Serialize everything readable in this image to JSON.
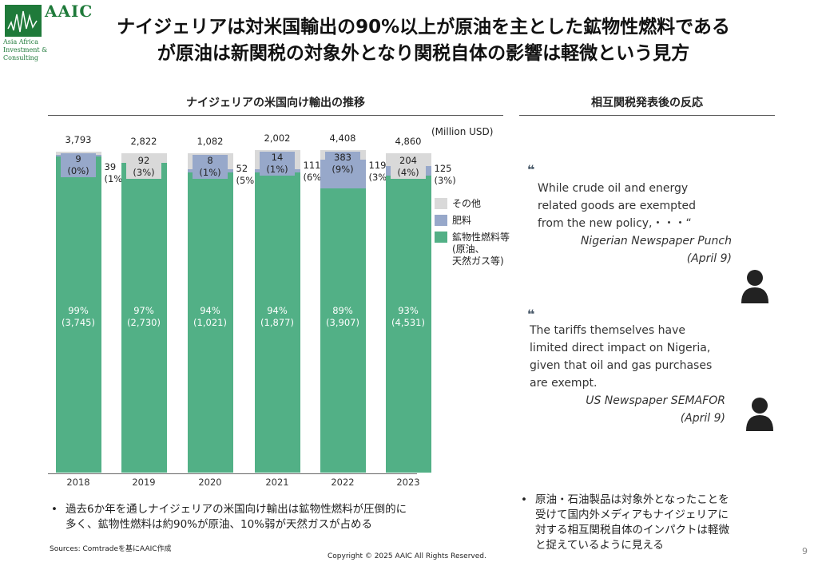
{
  "logo": {
    "name": "AAIC",
    "sub": "Asia Africa Investment & Consulting"
  },
  "title": [
    "ナイジェリアは対米国輸出の90%以上が原油を主とした鉱物性燃料である",
    "が原油は新関税の対象外となり関税自体の影響は軽微という見方"
  ],
  "left_section_title": "ナイジェリアの米国向け輸出の推移",
  "right_section_title": "相互関税発表後の反応",
  "chart_data": {
    "type": "bar",
    "stacked": true,
    "unit": "(Million USD)",
    "categories": [
      "2018",
      "2019",
      "2020",
      "2021",
      "2022",
      "2023"
    ],
    "totals": [
      "3,793",
      "2,822",
      "1,082",
      "2,002",
      "4,408",
      "4,860"
    ],
    "series": [
      {
        "name": "鉱物性燃料等",
        "note": [
          "(原油、",
          "天然ガス等)"
        ],
        "color": "#52b086",
        "values": [
          3745,
          2730,
          1021,
          1877,
          3907,
          4531
        ],
        "labels": [
          "3,745",
          "2,730",
          "1,021",
          "1,877",
          "3,907",
          "4,531"
        ],
        "pct": [
          "99%",
          "97%",
          "94%",
          "94%",
          "89%",
          "93%"
        ],
        "pctnum": [
          99,
          97,
          94,
          94,
          89,
          93
        ]
      },
      {
        "name": "肥料",
        "color": "#97a8ca",
        "values": [
          9,
          null,
          8,
          14,
          383,
          125
        ],
        "labels": [
          "9",
          null,
          "8",
          "14",
          "383",
          "125"
        ],
        "pct": [
          "0%",
          null,
          "1%",
          "1%",
          "9%",
          "3%"
        ],
        "pctnum": [
          0,
          0,
          1,
          1,
          9,
          3
        ]
      },
      {
        "name": "その他",
        "color": "#d9d9d9",
        "values": [
          39,
          92,
          52,
          111,
          119,
          204
        ],
        "labels": [
          "39",
          "92",
          "52",
          "111",
          "119",
          "204"
        ],
        "pct": [
          "1%",
          "3%",
          "5%",
          "6%",
          "3%",
          "4%"
        ],
        "pctnum": [
          1,
          3,
          5,
          6,
          3,
          4
        ]
      }
    ],
    "legend_position": "right"
  },
  "quotes": [
    {
      "text": [
        "While crude oil and energy",
        "related goods are exempted",
        "from the new policy,・・・“"
      ],
      "source": "Nigerian Newspaper Punch",
      "date": "(April 9)"
    },
    {
      "text": [
        "The tariffs themselves have",
        "limited direct impact on Nigeria,",
        "given that oil and gas purchases",
        "are exempt."
      ],
      "source": "US Newspaper SEMAFOR",
      "date": "(April 9)"
    }
  ],
  "quote_mark": "❝",
  "left_bullet": [
    "過去6か年を通しナイジェリアの米国向け輸出は鉱物性燃料が圧倒的に",
    "多く、鉱物性燃料は約90%が原油、10%弱が天然ガスが占める"
  ],
  "right_bullet": [
    "原油・石油製品は対象外となったことを",
    "受けて国内外メディアもナイジェリアに",
    "対する相互関税自体のインパクトは軽微",
    "と捉えているように見える"
  ],
  "bullet_mark": "•",
  "sources": "Sources: Comtradeを基にAAIC作成",
  "copyright": "Copyright © 2025 AAIC All Rights Reserved.",
  "page_number": "9"
}
